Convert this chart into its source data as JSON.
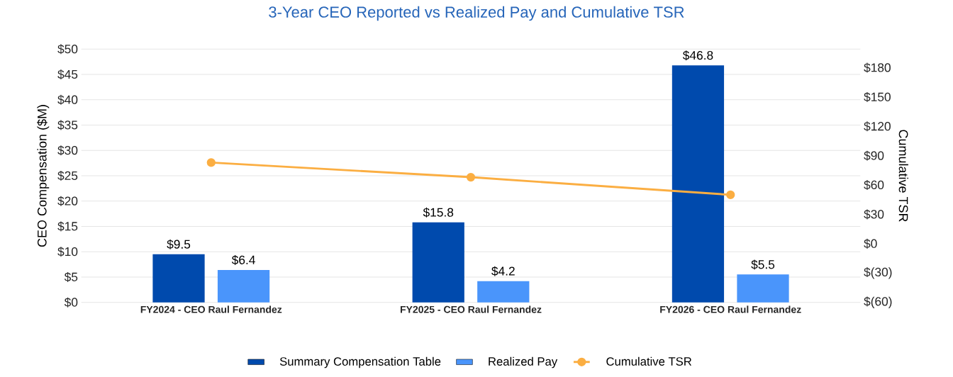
{
  "chart_data": {
    "type": "bar",
    "title": "3-Year CEO Reported vs Realized Pay and Cumulative TSR",
    "ylabel": "CEO Compensation ($M)",
    "y2label": "Cumulative TSR",
    "categories": [
      "FY2024 - CEO Raul Fernandez",
      "FY2025 - CEO Raul Fernandez",
      "FY2026 - CEO Raul Fernandez"
    ],
    "series": [
      {
        "name": "Summary Compensation Table",
        "color": "#004aad",
        "values": [
          9.5,
          15.8,
          46.8
        ],
        "value_labels": [
          "$9.5",
          "$15.8",
          "$46.8"
        ]
      },
      {
        "name": "Realized Pay",
        "color": "#4a95fb",
        "values": [
          6.4,
          4.2,
          5.5
        ],
        "value_labels": [
          "$6.4",
          "$4.2",
          "$5.5"
        ]
      },
      {
        "name": "Cumulative TSR",
        "type": "line",
        "axis": "y2",
        "color": "#fbae42",
        "marker": "circle",
        "values": [
          83,
          68,
          50
        ]
      }
    ],
    "ylim": [
      0,
      50
    ],
    "yticks": [
      {
        "value": 0,
        "label": "$0"
      },
      {
        "value": 5,
        "label": "$5"
      },
      {
        "value": 10,
        "label": "$10"
      },
      {
        "value": 15,
        "label": "$15"
      },
      {
        "value": 20,
        "label": "$20"
      },
      {
        "value": 25,
        "label": "$25"
      },
      {
        "value": 30,
        "label": "$30"
      },
      {
        "value": 35,
        "label": "$35"
      },
      {
        "value": 40,
        "label": "$40"
      },
      {
        "value": 45,
        "label": "$45"
      },
      {
        "value": 50,
        "label": "$50"
      }
    ],
    "y2lim": [
      -60,
      199
    ],
    "y2ticks": [
      {
        "value": -60,
        "label": "$(60)"
      },
      {
        "value": -30,
        "label": "$(30)"
      },
      {
        "value": 0,
        "label": "$0"
      },
      {
        "value": 30,
        "label": "$30"
      },
      {
        "value": 60,
        "label": "$60"
      },
      {
        "value": 90,
        "label": "$90"
      },
      {
        "value": 120,
        "label": "$120"
      },
      {
        "value": 150,
        "label": "$150"
      },
      {
        "value": 180,
        "label": "$180"
      }
    ],
    "grid": "y",
    "legend": "bottom"
  }
}
